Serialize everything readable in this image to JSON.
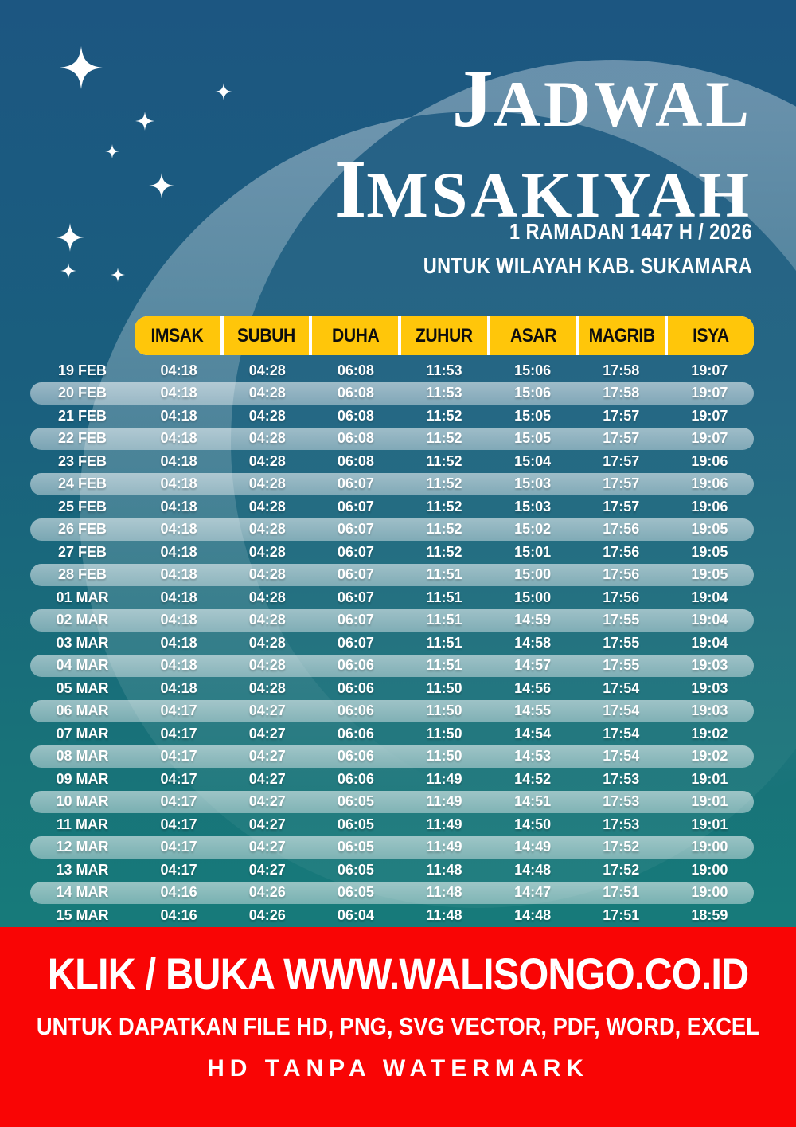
{
  "title": {
    "word1_initial": "J",
    "word1_rest": "ADWAL",
    "word2_initial": "I",
    "word2_rest": "MSAKIYAH"
  },
  "subtitle": {
    "line1": "1 RAMADAN 1447 H / 2026",
    "line2": "UNTUK WILAYAH KAB. SUKAMARA"
  },
  "schedule": {
    "columns": [
      "IMSAK",
      "SUBUH",
      "DUHA",
      "ZUHUR",
      "ASAR",
      "MAGRIB",
      "ISYA"
    ],
    "rows": [
      {
        "date": "19 FEB",
        "times": [
          "04:18",
          "04:28",
          "06:08",
          "11:53",
          "15:06",
          "17:58",
          "19:07"
        ]
      },
      {
        "date": "20 FEB",
        "times": [
          "04:18",
          "04:28",
          "06:08",
          "11:53",
          "15:06",
          "17:58",
          "19:07"
        ]
      },
      {
        "date": "21 FEB",
        "times": [
          "04:18",
          "04:28",
          "06:08",
          "11:52",
          "15:05",
          "17:57",
          "19:07"
        ]
      },
      {
        "date": "22 FEB",
        "times": [
          "04:18",
          "04:28",
          "06:08",
          "11:52",
          "15:05",
          "17:57",
          "19:07"
        ]
      },
      {
        "date": "23 FEB",
        "times": [
          "04:18",
          "04:28",
          "06:08",
          "11:52",
          "15:04",
          "17:57",
          "19:06"
        ]
      },
      {
        "date": "24 FEB",
        "times": [
          "04:18",
          "04:28",
          "06:07",
          "11:52",
          "15:03",
          "17:57",
          "19:06"
        ]
      },
      {
        "date": "25 FEB",
        "times": [
          "04:18",
          "04:28",
          "06:07",
          "11:52",
          "15:03",
          "17:57",
          "19:06"
        ]
      },
      {
        "date": "26 FEB",
        "times": [
          "04:18",
          "04:28",
          "06:07",
          "11:52",
          "15:02",
          "17:56",
          "19:05"
        ]
      },
      {
        "date": "27 FEB",
        "times": [
          "04:18",
          "04:28",
          "06:07",
          "11:52",
          "15:01",
          "17:56",
          "19:05"
        ]
      },
      {
        "date": "28 FEB",
        "times": [
          "04:18",
          "04:28",
          "06:07",
          "11:51",
          "15:00",
          "17:56",
          "19:05"
        ]
      },
      {
        "date": "01 MAR",
        "times": [
          "04:18",
          "04:28",
          "06:07",
          "11:51",
          "15:00",
          "17:56",
          "19:04"
        ]
      },
      {
        "date": "02 MAR",
        "times": [
          "04:18",
          "04:28",
          "06:07",
          "11:51",
          "14:59",
          "17:55",
          "19:04"
        ]
      },
      {
        "date": "03 MAR",
        "times": [
          "04:18",
          "04:28",
          "06:07",
          "11:51",
          "14:58",
          "17:55",
          "19:04"
        ]
      },
      {
        "date": "04 MAR",
        "times": [
          "04:18",
          "04:28",
          "06:06",
          "11:51",
          "14:57",
          "17:55",
          "19:03"
        ]
      },
      {
        "date": "05 MAR",
        "times": [
          "04:18",
          "04:28",
          "06:06",
          "11:50",
          "14:56",
          "17:54",
          "19:03"
        ]
      },
      {
        "date": "06 MAR",
        "times": [
          "04:17",
          "04:27",
          "06:06",
          "11:50",
          "14:55",
          "17:54",
          "19:03"
        ]
      },
      {
        "date": "07 MAR",
        "times": [
          "04:17",
          "04:27",
          "06:06",
          "11:50",
          "14:54",
          "17:54",
          "19:02"
        ]
      },
      {
        "date": "08 MAR",
        "times": [
          "04:17",
          "04:27",
          "06:06",
          "11:50",
          "14:53",
          "17:54",
          "19:02"
        ]
      },
      {
        "date": "09 MAR",
        "times": [
          "04:17",
          "04:27",
          "06:06",
          "11:49",
          "14:52",
          "17:53",
          "19:01"
        ]
      },
      {
        "date": "10 MAR",
        "times": [
          "04:17",
          "04:27",
          "06:05",
          "11:49",
          "14:51",
          "17:53",
          "19:01"
        ]
      },
      {
        "date": "11 MAR",
        "times": [
          "04:17",
          "04:27",
          "06:05",
          "11:49",
          "14:50",
          "17:53",
          "19:01"
        ]
      },
      {
        "date": "12 MAR",
        "times": [
          "04:17",
          "04:27",
          "06:05",
          "11:49",
          "14:49",
          "17:52",
          "19:00"
        ]
      },
      {
        "date": "13 MAR",
        "times": [
          "04:17",
          "04:27",
          "06:05",
          "11:48",
          "14:48",
          "17:52",
          "19:00"
        ]
      },
      {
        "date": "14 MAR",
        "times": [
          "04:16",
          "04:26",
          "06:05",
          "11:48",
          "14:47",
          "17:51",
          "19:00"
        ]
      },
      {
        "date": "15 MAR",
        "times": [
          "04:16",
          "04:26",
          "06:04",
          "11:48",
          "14:48",
          "17:51",
          "18:59"
        ]
      }
    ]
  },
  "footer": {
    "line1": "KLIK / BUKA WWW.WALISONGO.CO.ID",
    "line2": "UNTUK DAPATKAN FILE HD, PNG, SVG VECTOR, PDF, WORD, EXCEL",
    "line3": "HD TANPA WATERMARK"
  },
  "decorations": {
    "moon_icon": "crescent-moon",
    "star_icon": "sparkle-star"
  },
  "colors": {
    "background_top": "#1C5681",
    "background_bottom": "#16817A",
    "header_bg": "#FFC60A",
    "header_text": "#0D0D0D",
    "row_stripe": "#8FB8C7",
    "text": "#FFFFFF",
    "footer_bg": "#F90505",
    "footer_text": "#FFFFFF"
  }
}
